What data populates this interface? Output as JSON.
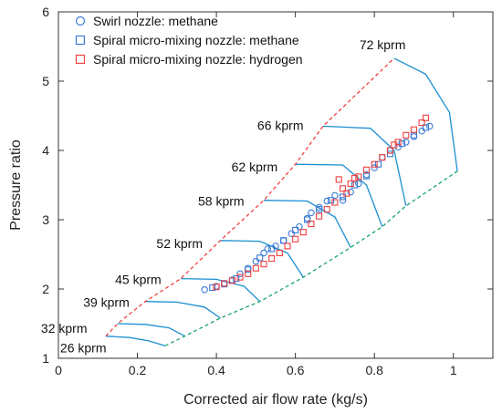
{
  "chart_data": {
    "type": "scatter",
    "xlabel": "Corrected air flow rate (kg/s)",
    "ylabel": "Pressure ratio",
    "xlim": [
      0,
      1.1
    ],
    "ylim": [
      1,
      6
    ],
    "xticks": [
      "0",
      "0.2",
      "0.4",
      "0.6",
      "0.8",
      "1"
    ],
    "yticks": [
      "1",
      "2",
      "3",
      "4",
      "5",
      "6"
    ],
    "legend_position": "top-left",
    "colors": {
      "swirl": "#3a7bd5",
      "spiral_methane": "#3a7bd5",
      "spiral_hydrogen": "#f04040",
      "speed_lines": "#1a8fd0",
      "surge_line": "#f04040",
      "choke_line": "#1aa56a"
    },
    "series": [
      {
        "name": "Swirl nozzle: methane",
        "marker": "circle",
        "points": [
          [
            0.37,
            1.99
          ],
          [
            0.4,
            2.04
          ],
          [
            0.42,
            2.08
          ],
          [
            0.44,
            2.13
          ],
          [
            0.46,
            2.22
          ],
          [
            0.48,
            2.3
          ],
          [
            0.5,
            2.4
          ],
          [
            0.52,
            2.52
          ],
          [
            0.53,
            2.58
          ],
          [
            0.55,
            2.62
          ],
          [
            0.57,
            2.7
          ],
          [
            0.59,
            2.8
          ],
          [
            0.61,
            2.9
          ],
          [
            0.63,
            3.02
          ],
          [
            0.64,
            3.1
          ],
          [
            0.66,
            3.18
          ],
          [
            0.68,
            3.27
          ],
          [
            0.7,
            3.35
          ],
          [
            0.72,
            3.28
          ],
          [
            0.74,
            3.4
          ],
          [
            0.76,
            3.52
          ],
          [
            0.78,
            3.65
          ],
          [
            0.8,
            3.75
          ],
          [
            0.82,
            3.9
          ],
          [
            0.84,
            4.0
          ],
          [
            0.86,
            4.05
          ],
          [
            0.88,
            4.12
          ],
          [
            0.9,
            4.2
          ],
          [
            0.92,
            4.28
          ],
          [
            0.94,
            4.35
          ]
        ]
      },
      {
        "name": "Spiral micro-mixing nozzle: methane",
        "marker": "square",
        "points": [
          [
            0.39,
            2.02
          ],
          [
            0.42,
            2.07
          ],
          [
            0.45,
            2.15
          ],
          [
            0.48,
            2.28
          ],
          [
            0.51,
            2.45
          ],
          [
            0.54,
            2.58
          ],
          [
            0.57,
            2.7
          ],
          [
            0.6,
            2.85
          ],
          [
            0.63,
            3.0
          ],
          [
            0.66,
            3.15
          ],
          [
            0.69,
            3.28
          ],
          [
            0.72,
            3.33
          ],
          [
            0.75,
            3.5
          ],
          [
            0.78,
            3.63
          ],
          [
            0.81,
            3.8
          ],
          [
            0.84,
            3.95
          ],
          [
            0.87,
            4.1
          ],
          [
            0.9,
            4.22
          ],
          [
            0.93,
            4.33
          ]
        ]
      },
      {
        "name": "Spiral micro-mixing nozzle: hydrogen",
        "marker": "square",
        "points": [
          [
            0.4,
            2.03
          ],
          [
            0.42,
            2.08
          ],
          [
            0.44,
            2.12
          ],
          [
            0.46,
            2.17
          ],
          [
            0.48,
            2.22
          ],
          [
            0.5,
            2.3
          ],
          [
            0.52,
            2.36
          ],
          [
            0.54,
            2.44
          ],
          [
            0.56,
            2.52
          ],
          [
            0.58,
            2.62
          ],
          [
            0.6,
            2.72
          ],
          [
            0.62,
            2.82
          ],
          [
            0.64,
            2.94
          ],
          [
            0.66,
            3.05
          ],
          [
            0.68,
            3.15
          ],
          [
            0.7,
            3.25
          ],
          [
            0.71,
            3.58
          ],
          [
            0.72,
            3.45
          ],
          [
            0.73,
            3.38
          ],
          [
            0.74,
            3.52
          ],
          [
            0.75,
            3.6
          ],
          [
            0.76,
            3.62
          ],
          [
            0.78,
            3.72
          ],
          [
            0.8,
            3.8
          ],
          [
            0.82,
            3.9
          ],
          [
            0.84,
            4.0
          ],
          [
            0.85,
            4.08
          ],
          [
            0.86,
            4.12
          ],
          [
            0.88,
            4.22
          ],
          [
            0.9,
            4.3
          ],
          [
            0.92,
            4.4
          ],
          [
            0.93,
            4.47
          ]
        ]
      }
    ],
    "speed_lines": [
      {
        "label": "26 kprm",
        "points": [
          [
            0.12,
            1.32
          ],
          [
            0.18,
            1.3
          ],
          [
            0.23,
            1.25
          ],
          [
            0.27,
            1.18
          ]
        ]
      },
      {
        "label": "32 kprm",
        "points": [
          [
            0.15,
            1.5
          ],
          [
            0.22,
            1.49
          ],
          [
            0.28,
            1.44
          ],
          [
            0.32,
            1.32
          ]
        ]
      },
      {
        "label": "39 kprm",
        "points": [
          [
            0.22,
            1.82
          ],
          [
            0.3,
            1.81
          ],
          [
            0.37,
            1.74
          ],
          [
            0.41,
            1.58
          ]
        ]
      },
      {
        "label": "45 kprm",
        "points": [
          [
            0.31,
            2.15
          ],
          [
            0.4,
            2.14
          ],
          [
            0.47,
            2.04
          ],
          [
            0.51,
            1.82
          ]
        ]
      },
      {
        "label": "52 kprm",
        "points": [
          [
            0.41,
            2.7
          ],
          [
            0.51,
            2.69
          ],
          [
            0.58,
            2.52
          ],
          [
            0.62,
            2.17
          ]
        ]
      },
      {
        "label": "58 kprm",
        "points": [
          [
            0.52,
            3.28
          ],
          [
            0.63,
            3.27
          ],
          [
            0.7,
            3.04
          ],
          [
            0.74,
            2.6
          ]
        ]
      },
      {
        "label": "62 kprm",
        "points": [
          [
            0.6,
            3.8
          ],
          [
            0.72,
            3.79
          ],
          [
            0.78,
            3.5
          ],
          [
            0.82,
            2.9
          ]
        ]
      },
      {
        "label": "66 kprm",
        "points": [
          [
            0.67,
            4.35
          ],
          [
            0.79,
            4.32
          ],
          [
            0.85,
            4.0
          ],
          [
            0.88,
            3.2
          ]
        ]
      },
      {
        "label": "72 kprm",
        "points": [
          [
            0.85,
            5.33
          ],
          [
            0.93,
            5.1
          ],
          [
            0.99,
            4.55
          ],
          [
            1.01,
            3.7
          ]
        ]
      }
    ],
    "surge_line": [
      [
        0.12,
        1.32
      ],
      [
        0.15,
        1.5
      ],
      [
        0.22,
        1.82
      ],
      [
        0.31,
        2.15
      ],
      [
        0.41,
        2.7
      ],
      [
        0.52,
        3.28
      ],
      [
        0.6,
        3.8
      ],
      [
        0.67,
        4.35
      ],
      [
        0.85,
        5.33
      ]
    ],
    "choke_line": [
      [
        0.27,
        1.18
      ],
      [
        0.32,
        1.32
      ],
      [
        0.41,
        1.58
      ],
      [
        0.51,
        1.82
      ],
      [
        0.62,
        2.17
      ],
      [
        0.74,
        2.6
      ],
      [
        0.82,
        2.9
      ],
      [
        0.88,
        3.2
      ],
      [
        1.01,
        3.7
      ]
    ]
  }
}
